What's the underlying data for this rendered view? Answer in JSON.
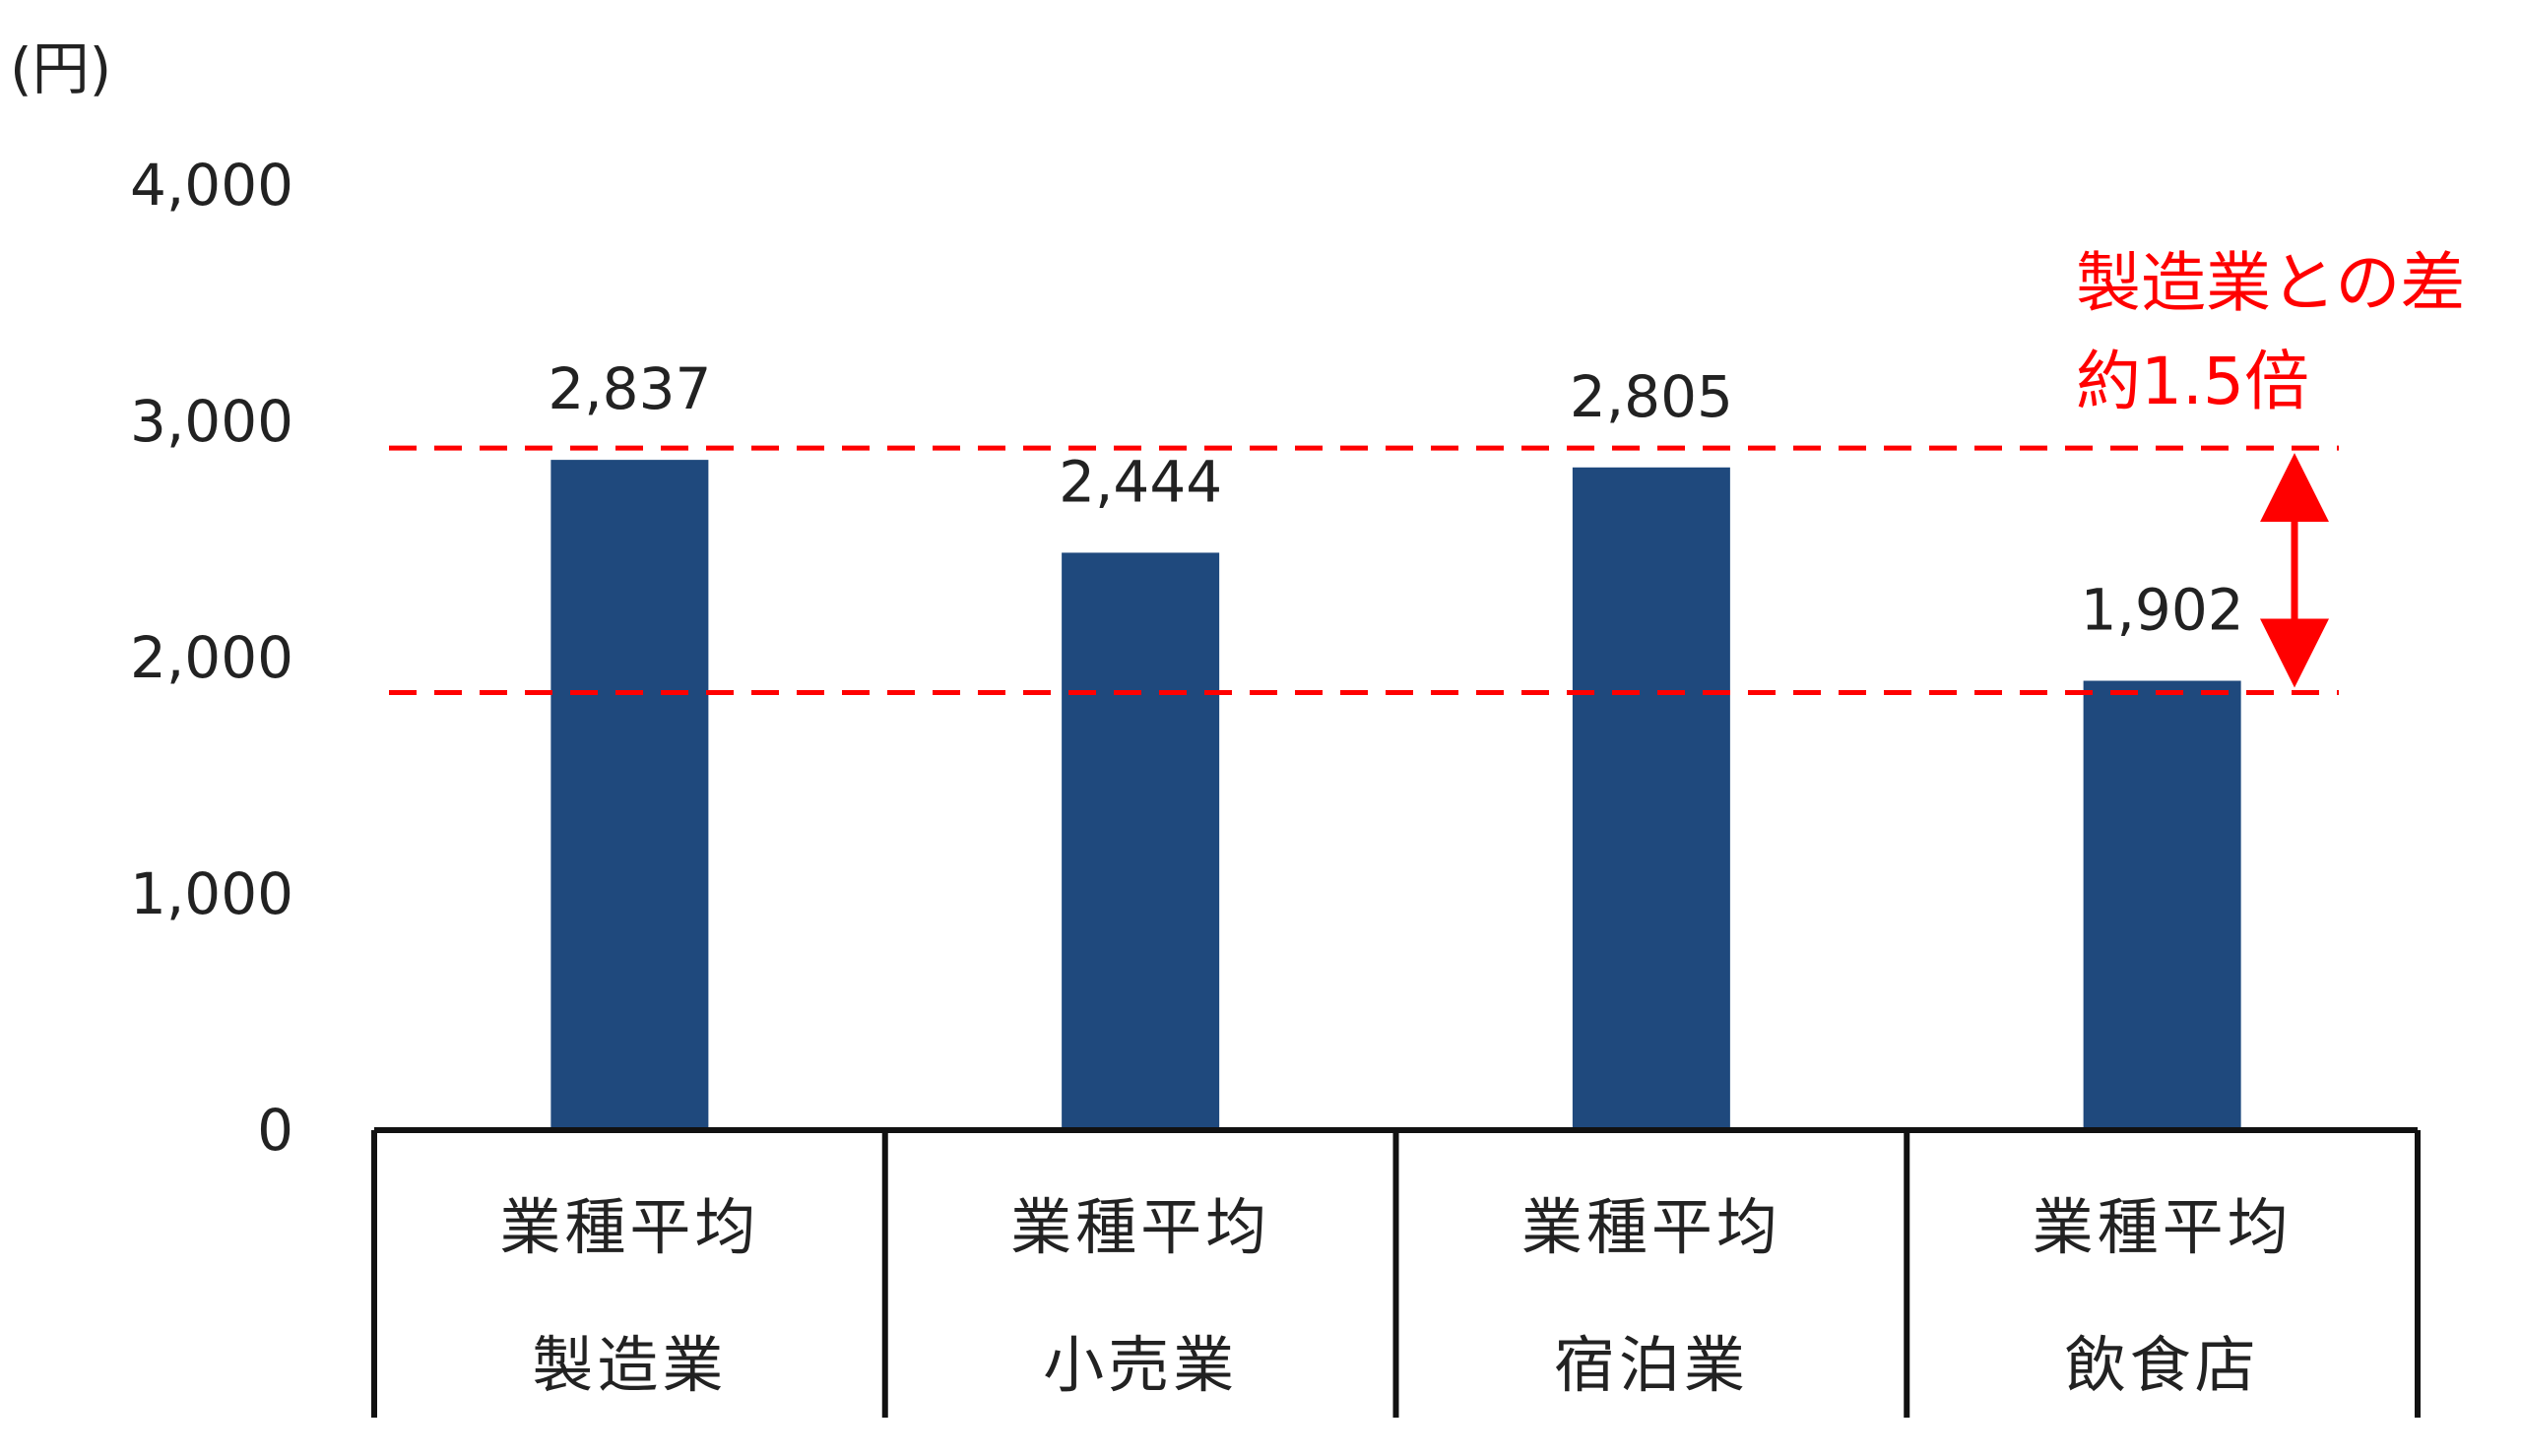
{
  "chart_data": {
    "type": "bar",
    "ylabel": "(円)",
    "ylim": [
      0,
      4000
    ],
    "yticks": [
      "4,000",
      "3,000",
      "2,000",
      "1,000",
      "0"
    ],
    "grid": false,
    "categories": [
      {
        "line1": "業種平均",
        "line2": "製造業"
      },
      {
        "line1": "業種平均",
        "line2": "小売業"
      },
      {
        "line1": "業種平均",
        "line2": "宿泊業"
      },
      {
        "line1": "業種平均",
        "line2": "飲食店"
      }
    ],
    "values": [
      2837,
      2444,
      2805,
      1902
    ],
    "value_labels": [
      "2,837",
      "2,444",
      "2,805",
      "1,902"
    ],
    "bar_color": "#1f497d",
    "annotation": {
      "line1": "製造業との差",
      "line2": "約1.5倍",
      "color": "#ff0000",
      "from_value": 2837,
      "to_value": 1902
    }
  }
}
